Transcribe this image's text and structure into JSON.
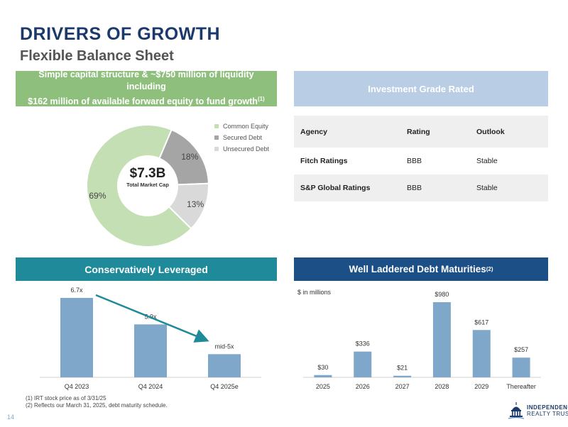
{
  "header": {
    "title": "DRIVERS OF GROWTH",
    "subtitle": "Flexible Balance Sheet"
  },
  "capital_banner": {
    "line1": "Simple capital structure & ~$750 million of liquidity including",
    "line2": "$162 million of available forward equity to fund growth",
    "sup": "(1)"
  },
  "donut": {
    "center_value": "$7.3B",
    "center_label": "Total Market Cap",
    "segments": [
      {
        "name": "Common Equity",
        "value": 69,
        "label": "69%",
        "color": "#c5dfb4"
      },
      {
        "name": "Secured Debt",
        "value": 18,
        "label": "18%",
        "color": "#a5a5a5"
      },
      {
        "name": "Unsecured Debt",
        "value": 13,
        "label": "13%",
        "color": "#d9d9d9"
      }
    ]
  },
  "ratings": {
    "banner": "Investment Grade Rated",
    "headers": [
      "Agency",
      "Rating",
      "Outlook"
    ],
    "rows": [
      [
        "Fitch Ratings",
        "BBB",
        "Stable"
      ],
      [
        "S&P Global Ratings",
        "BBB",
        "Stable"
      ]
    ]
  },
  "leverage_banner": "Conservatively Leveraged",
  "maturities_banner": {
    "text": "Well Laddered Debt Maturities",
    "sup": "(2)"
  },
  "maturities_unit": "$ in millions",
  "chart_data": [
    {
      "type": "bar",
      "title": "Conservatively Leveraged",
      "categories": [
        "Q4 2023",
        "Q4 2024",
        "Q4 2025e"
      ],
      "values": [
        6.7,
        5.9,
        5.0
      ],
      "data_labels": [
        "6.7x",
        "5.9x",
        "mid-5x"
      ],
      "annotations": [
        "downward trend arrow from Q4 2023 to Q4 2025e"
      ],
      "ylim": [
        4.3,
        6.7
      ],
      "color": "#7fa7c9"
    },
    {
      "type": "bar",
      "title": "Well Laddered Debt Maturities",
      "categories": [
        "2025",
        "2026",
        "2027",
        "2028",
        "2029",
        "Thereafter"
      ],
      "values": [
        30,
        336,
        21,
        980,
        617,
        257
      ],
      "data_labels": [
        "$30",
        "$336",
        "$21",
        "$980",
        "$617",
        "$257"
      ],
      "ylabel": "$ in millions",
      "ylim": [
        0,
        980
      ],
      "color": "#7fa7c9"
    }
  ],
  "footnotes": [
    "(1) IRT stock price as of 3/31/25",
    "(2) Reflects our March 31, 2025, debt maturity schedule."
  ],
  "page_number": "14",
  "logo": {
    "line1": "INDEPENDENCE",
    "line2": "REALTY TRUST"
  }
}
